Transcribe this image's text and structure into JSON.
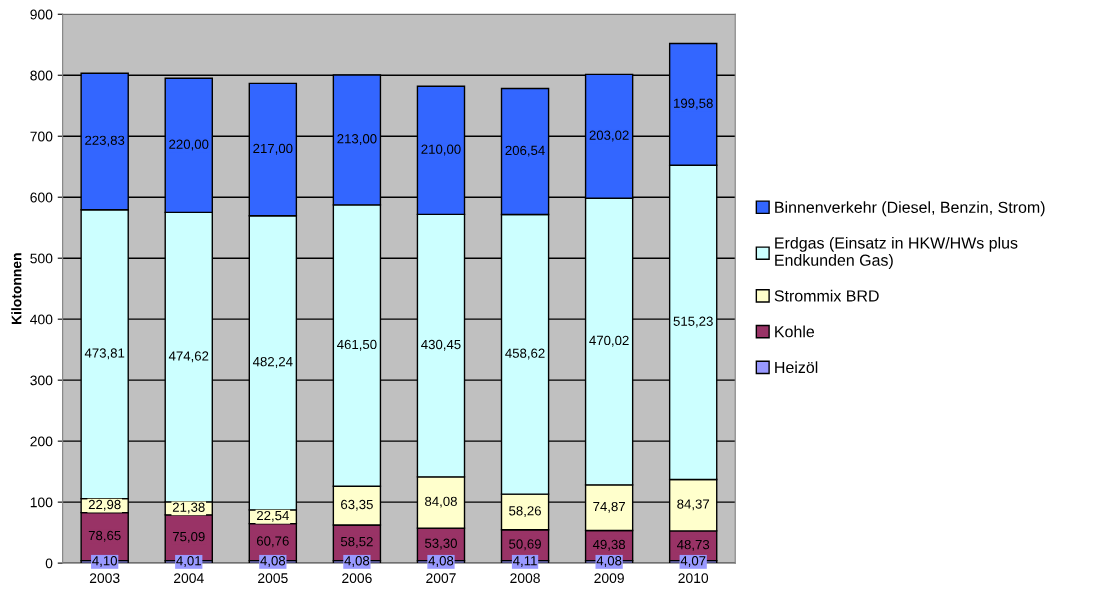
{
  "chart_data": {
    "type": "bar",
    "stacked": true,
    "ylabel": "Kilotonnen",
    "categories": [
      "2003",
      "2004",
      "2005",
      "2006",
      "2007",
      "2008",
      "2009",
      "2010"
    ],
    "series": [
      {
        "name": "Heizöl",
        "color": "#9999ff",
        "values": [
          4.1,
          4.01,
          4.08,
          4.08,
          4.08,
          4.11,
          4.08,
          4.07
        ],
        "value_labels": [
          "4,10",
          "4,01",
          "4,08",
          "4,08",
          "4,08",
          "4,11",
          "4,08",
          "4,07"
        ]
      },
      {
        "name": "Kohle",
        "color": "#993366",
        "values": [
          78.65,
          75.09,
          60.76,
          58.52,
          53.3,
          50.69,
          49.38,
          48.73
        ],
        "value_labels": [
          "78,65",
          "75,09",
          "60,76",
          "58,52",
          "53,30",
          "50,69",
          "49,38",
          "48,73"
        ]
      },
      {
        "name": "Strommix BRD",
        "color": "#ffffcc",
        "values": [
          22.98,
          21.38,
          22.54,
          63.35,
          84.08,
          58.26,
          74.87,
          84.37
        ],
        "value_labels": [
          "22,98",
          "21,38",
          "22,54",
          "63,35",
          "84,08",
          "58,26",
          "74,87",
          "84,37"
        ]
      },
      {
        "name": "Erdgas (Einsatz in HKW/HWs plus\nEndkunden Gas)",
        "color": "#ccffff",
        "values": [
          473.81,
          474.62,
          482.24,
          461.5,
          430.45,
          458.62,
          470.02,
          515.23
        ],
        "value_labels": [
          "473,81",
          "474,62",
          "482,24",
          "461,50",
          "430,45",
          "458,62",
          "470,02",
          "515,23"
        ]
      },
      {
        "name": "Binnenverkehr (Diesel, Benzin, Strom)",
        "color": "#3366ff",
        "values": [
          223.83,
          220.0,
          217.0,
          213.0,
          210.0,
          206.54,
          203.02,
          199.58
        ],
        "value_labels": [
          "223,83",
          "220,00",
          "217,00",
          "213,00",
          "210,00",
          "206,54",
          "203,02",
          "199,58"
        ]
      }
    ],
    "ylim": [
      0,
      900
    ],
    "yticks": [
      0,
      100,
      200,
      300,
      400,
      500,
      600,
      700,
      800,
      900
    ],
    "grid": "y",
    "legend": "right"
  }
}
